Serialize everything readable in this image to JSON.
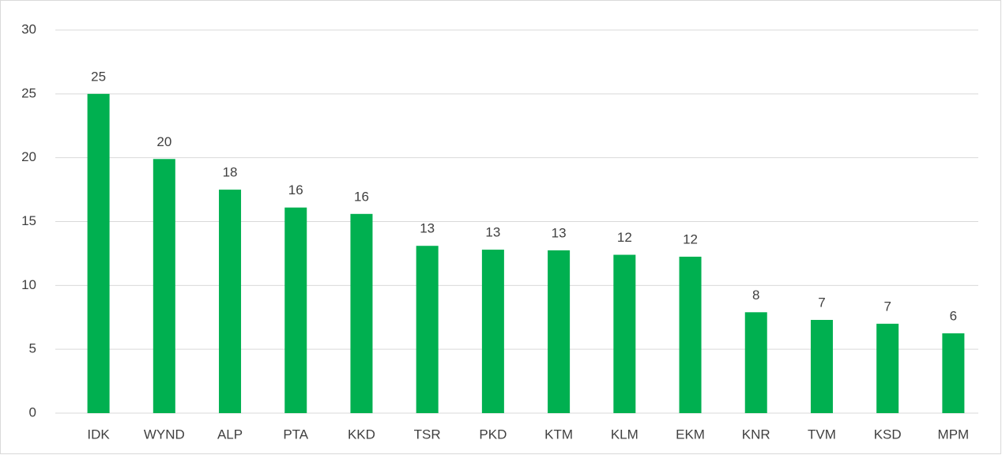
{
  "chart_data": {
    "type": "bar",
    "categories": [
      "IDK",
      "WYND",
      "ALP",
      "PTA",
      "KKD",
      "TSR",
      "PKD",
      "KTM",
      "KLM",
      "EKM",
      "KNR",
      "TVM",
      "KSD",
      "MPM"
    ],
    "values": [
      25.0,
      19.9,
      17.5,
      16.1,
      15.6,
      13.1,
      12.8,
      12.75,
      12.4,
      12.25,
      7.9,
      7.3,
      7.0,
      6.25
    ],
    "value_labels": [
      "25",
      "20",
      "18",
      "16",
      "16",
      "13",
      "13",
      "13",
      "12",
      "12",
      "8",
      "7",
      "7",
      "6"
    ],
    "color": "#00b050",
    "ylim": [
      0,
      30
    ],
    "yticks": [
      0,
      5,
      10,
      15,
      20,
      25,
      30
    ],
    "grid": true
  }
}
